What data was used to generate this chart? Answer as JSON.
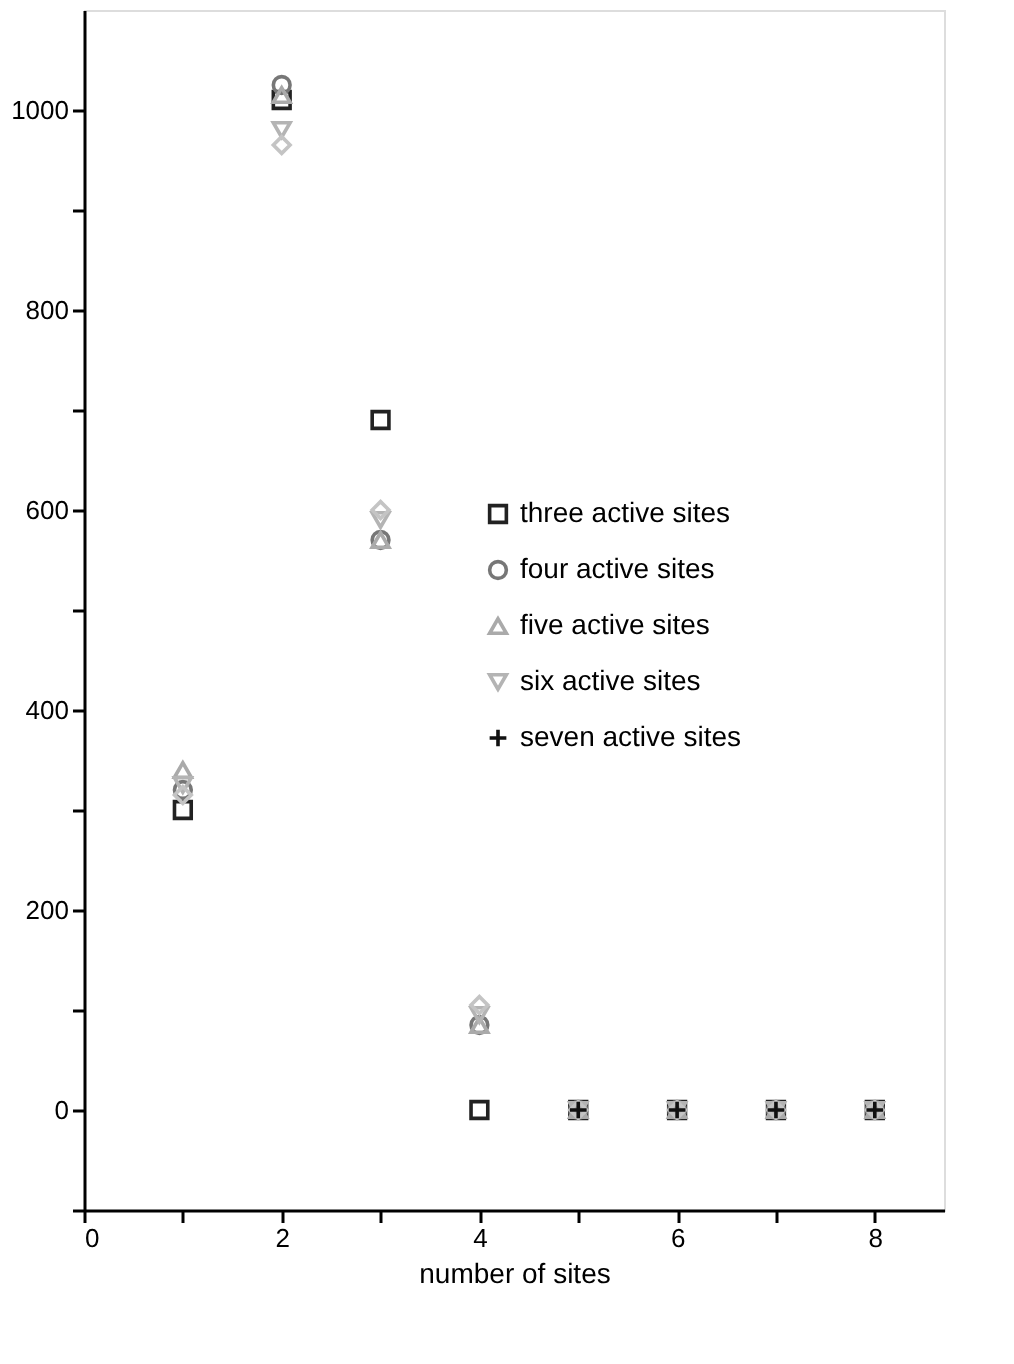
{
  "chart_data": {
    "type": "scatter",
    "xlabel": "number of sites",
    "x": [
      1,
      2,
      3,
      4,
      5,
      6,
      7,
      8
    ],
    "xlim": [
      0,
      8.7
    ],
    "xticks": [
      0,
      {
        "value": 1,
        "label": null
      },
      2,
      {
        "value": 3,
        "label": null
      },
      4,
      {
        "value": 5,
        "label": null
      },
      6,
      {
        "value": 7,
        "label": null
      },
      8
    ],
    "ylim": [
      -100,
      1100
    ],
    "yticks": [
      {
        "value": -100,
        "label": null
      },
      0,
      {
        "value": 100,
        "label": null
      },
      200,
      {
        "value": 300,
        "label": null
      },
      400,
      {
        "value": 500,
        "label": null
      },
      600,
      {
        "value": 700,
        "label": null
      },
      800,
      {
        "value": 900,
        "label": null
      },
      1000
    ],
    "legend": "right",
    "grid": false,
    "series": [
      {
        "name": "three active sites",
        "color": "#222222",
        "marker": "square",
        "values": [
          300,
          1010,
          690,
          0,
          0,
          0,
          0,
          0
        ]
      },
      {
        "name": "four active sites",
        "color": "#777777",
        "marker": "circle",
        "values": [
          320,
          1025,
          570,
          85,
          0,
          0,
          0,
          0
        ]
      },
      {
        "name": "five active sites",
        "color": "#aaaaaa",
        "marker": "triangle",
        "values": [
          340,
          1015,
          570,
          85,
          0,
          0,
          0,
          0
        ]
      },
      {
        "name": "six active sites",
        "color": "#b4b4b4",
        "marker": "triangle-down",
        "values": [
          325,
          980,
          590,
          95,
          0,
          0,
          0,
          0
        ]
      },
      {
        "color": "#c4c4c4",
        "marker": "diamond",
        "values": [
          315,
          965,
          600,
          105,
          0,
          0,
          0,
          0
        ]
      },
      {
        "name": "seven active sites",
        "color": "#111111",
        "marker": "cross",
        "values": [
          null,
          null,
          null,
          null,
          0,
          0,
          0,
          0
        ]
      }
    ]
  }
}
